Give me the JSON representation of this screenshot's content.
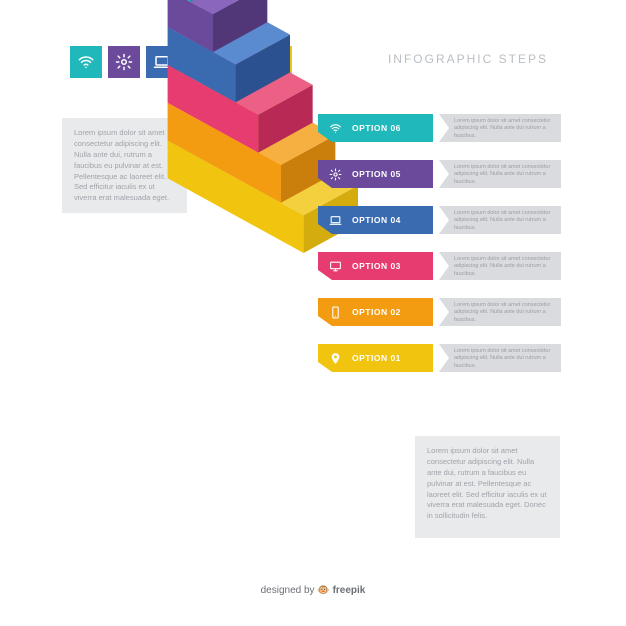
{
  "title": "INFOGRAPHIC STEPS",
  "background_color": "#ffffff",
  "icon_row": [
    {
      "name": "wifi",
      "bg": "#20b8bb"
    },
    {
      "name": "gear",
      "bg": "#6b4a9c"
    },
    {
      "name": "laptop",
      "bg": "#3a6ab0"
    },
    {
      "name": "monitor",
      "bg": "#e73c6f"
    },
    {
      "name": "phone",
      "bg": "#f39c12"
    },
    {
      "name": "pin",
      "bg": "#f1c40f"
    }
  ],
  "text_box_upper": "Lorem ipsum dolor sit amet consectetur adipiscing elit. Nulla ante dui, rutrum a faucibus eu pulvinar at est. Pellentesque ac laoreet elit. Sed efficitur iaculis ex ut viverra erat malesuada eget.",
  "text_box_lower": "Lorem ipsum dolor sit amet consectetur adipiscing elit. Nulla ante dui, rutrum a faucibus eu pulvinar at est. Pellentesque ac laoreet elit. Sed efficitur iaculis ex ut viverra erat malesuada eget. Donec in sollicitudin felis.",
  "text_box_bg": "#e9eaec",
  "text_box_color": "#9fa3a9",
  "desc_box_bg": "#d9dbde",
  "steps_staircase": {
    "type": "isometric-stairs",
    "count": 6,
    "step_width": 50,
    "step_height": 36,
    "depth": 26,
    "colors": [
      {
        "top": "#f4d03f",
        "left": "#f1c40f",
        "right": "#d4ac0d"
      },
      {
        "top": "#f5b041",
        "left": "#f39c12",
        "right": "#ca7e0b"
      },
      {
        "top": "#ec6086",
        "left": "#e73c6f",
        "right": "#b82a55"
      },
      {
        "top": "#5a8ad0",
        "left": "#3a6ab0",
        "right": "#2c5190"
      },
      {
        "top": "#8b66bd",
        "left": "#6b4a9c",
        "right": "#523778"
      },
      {
        "top": "#3cd4d6",
        "left": "#20b8bb",
        "right": "#159497"
      }
    ]
  },
  "options": [
    {
      "label": "OPTION 06",
      "icon": "wifi",
      "color": "#20b8bb",
      "desc": "Lorem ipsum dolor sit amet consectetur adipiscing elit. Nulla ante dui rutrum a faucibus."
    },
    {
      "label": "OPTION 05",
      "icon": "gear",
      "color": "#6b4a9c",
      "desc": "Lorem ipsum dolor sit amet consectetur adipiscing elit. Nulla ante dui rutrum a faucibus."
    },
    {
      "label": "OPTION 04",
      "icon": "laptop",
      "color": "#3a6ab0",
      "desc": "Lorem ipsum dolor sit amet consectetur adipiscing elit. Nulla ante dui rutrum a faucibus."
    },
    {
      "label": "OPTION 03",
      "icon": "monitor",
      "color": "#e73c6f",
      "desc": "Lorem ipsum dolor sit amet consectetur adipiscing elit. Nulla ante dui rutrum a faucibus."
    },
    {
      "label": "OPTION 02",
      "icon": "phone",
      "color": "#f39c12",
      "desc": "Lorem ipsum dolor sit amet consectetur adipiscing elit. Nulla ante dui rutrum a faucibus."
    },
    {
      "label": "OPTION 01",
      "icon": "pin",
      "color": "#f1c40f",
      "desc": "Lorem ipsum dolor sit amet consectetur adipiscing elit. Nulla ante dui rutrum a faucibus."
    }
  ],
  "footer_prefix": "designed by ",
  "footer_brand": "freepik"
}
